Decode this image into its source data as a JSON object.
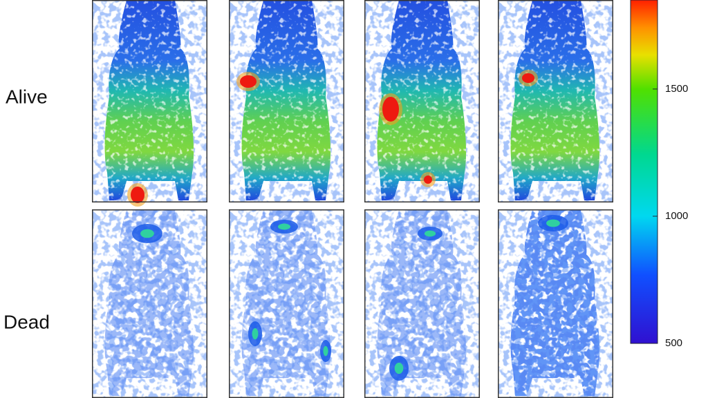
{
  "row_labels": [
    "Alive",
    "Dead"
  ],
  "colorbar": {
    "lim": [
      500,
      1850
    ],
    "ticks": [
      500,
      1000,
      1500
    ]
  }
}
